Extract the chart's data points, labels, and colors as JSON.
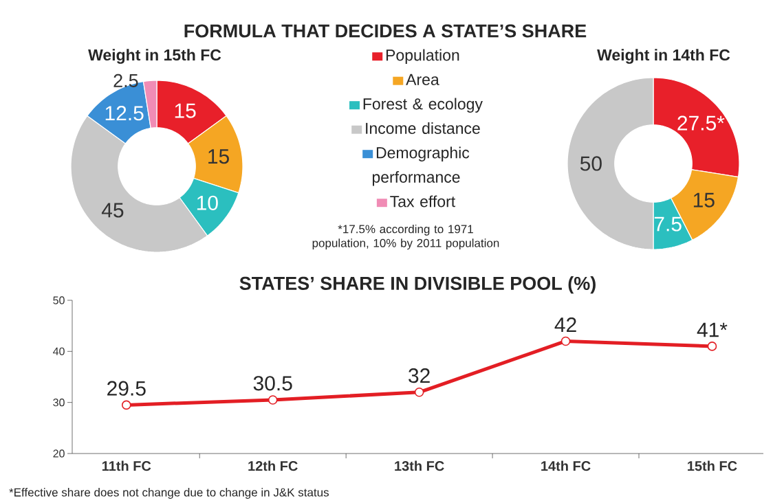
{
  "chart_data": [
    {
      "type": "donut",
      "title": "FORMULA THAT DECIDES A STATE’S SHARE",
      "subtitle": "Weight in 15th FC",
      "categories": [
        "Population",
        "Area",
        "Forest & ecology",
        "Income distance",
        "Demographic performance",
        "Tax effort"
      ],
      "values": [
        15,
        15,
        10,
        45,
        12.5,
        2.5
      ],
      "colors": [
        "#e8202a",
        "#f5a623",
        "#2bbfbf",
        "#c8c8c8",
        "#3a8fd6",
        "#f08cb5"
      ],
      "data_labels": true,
      "legend": "right"
    },
    {
      "type": "donut",
      "title": "Weight in 14th FC",
      "categories": [
        null,
        null,
        null,
        null
      ],
      "values": [
        27.5,
        15,
        7.5,
        50
      ],
      "colors": [
        "#e8202a",
        "#f5a623",
        "#2bbfbf",
        "#c8c8c8"
      ],
      "value_labels": [
        "27.5*",
        "15",
        "7.5",
        "50"
      ],
      "annotations": [
        "*17.5% according to 1971 population, 10% by 2011 population"
      ]
    },
    {
      "type": "line",
      "title": "STATES’ SHARE IN DIVISIBLE POOL (%)",
      "categories": [
        "11th FC",
        "12th FC",
        "13th FC",
        "14th FC",
        "15th FC"
      ],
      "values": [
        29.5,
        30.5,
        32,
        42,
        41
      ],
      "value_labels": [
        "29.5",
        "30.5",
        "32",
        "42",
        "41*"
      ],
      "color": "#e31e24",
      "marker": "circle",
      "ylim": [
        20,
        50
      ],
      "yticks": [
        20,
        30,
        40,
        50
      ],
      "annotations": [
        "*Effective share does not change due to change in J&K status"
      ]
    }
  ]
}
